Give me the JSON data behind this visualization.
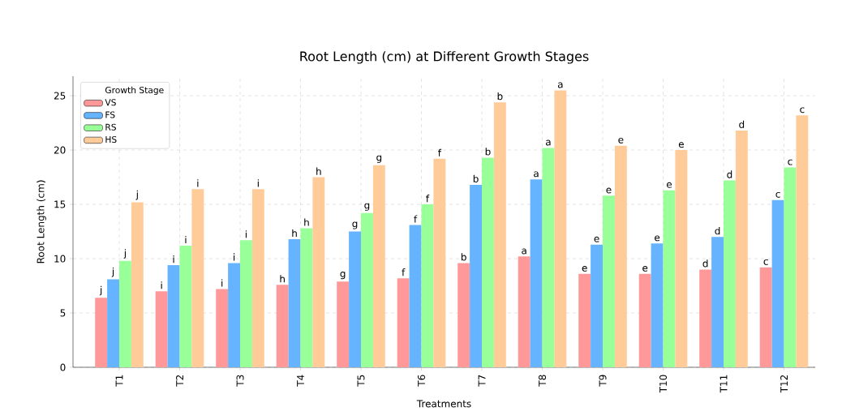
{
  "chart_data": {
    "type": "bar",
    "title": "Root Length (cm) at Different Growth Stages",
    "xlabel": "Treatments",
    "ylabel": "Root Length (cm)",
    "legend_title": "Growth Stage",
    "categories": [
      "T1",
      "T2",
      "T3",
      "T4",
      "T5",
      "T6",
      "T7",
      "T8",
      "T9",
      "T10",
      "T11",
      "T12"
    ],
    "series": [
      {
        "name": "VS",
        "color": "#ff9999",
        "values": [
          6.4,
          7.0,
          7.2,
          7.6,
          7.9,
          8.2,
          9.6,
          10.2,
          8.6,
          8.6,
          9.0,
          9.2
        ],
        "value_labels": [
          "j",
          "i",
          "i",
          "h",
          "g",
          "f",
          "b",
          "a",
          "e",
          "e",
          "d",
          "c"
        ]
      },
      {
        "name": "FS",
        "color": "#66b3ff",
        "values": [
          8.1,
          9.4,
          9.6,
          11.8,
          12.5,
          13.1,
          16.8,
          17.3,
          11.3,
          11.4,
          12.0,
          15.4
        ],
        "value_labels": [
          "j",
          "i",
          "i",
          "h",
          "g",
          "f",
          "b",
          "a",
          "e",
          "e",
          "d",
          "c"
        ]
      },
      {
        "name": "RS",
        "color": "#99ff99",
        "values": [
          9.8,
          11.2,
          11.7,
          12.8,
          14.2,
          15.0,
          19.3,
          20.2,
          15.8,
          16.3,
          17.2,
          18.4
        ],
        "value_labels": [
          "j",
          "i",
          "i",
          "h",
          "g",
          "f",
          "b",
          "a",
          "e",
          "e",
          "d",
          "c"
        ]
      },
      {
        "name": "HS",
        "color": "#ffcc99",
        "values": [
          15.2,
          16.4,
          16.4,
          17.5,
          18.6,
          19.2,
          24.4,
          25.5,
          20.4,
          20.0,
          21.8,
          23.2
        ],
        "value_labels": [
          "j",
          "i",
          "i",
          "h",
          "g",
          "f",
          "b",
          "a",
          "e",
          "e",
          "d",
          "c"
        ]
      }
    ],
    "ylim": [
      0,
      26.8
    ],
    "yticks": [
      0,
      5,
      10,
      15,
      20,
      25
    ],
    "grid": true,
    "legend": "top left"
  }
}
